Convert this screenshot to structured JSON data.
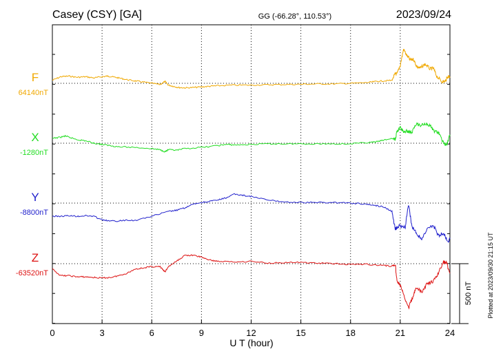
{
  "header": {
    "station": "Casey (CSY)  [GA]",
    "coords": "GG (-66.28°, 110.53°)",
    "date": "2023/09/24"
  },
  "footer": {
    "plotted_note": "Plotted at 2023/09/30 21:15 UT",
    "scale_label": "500 nT"
  },
  "chart_data": {
    "type": "line",
    "xlabel": "U T (hour)",
    "xlim": [
      0,
      24
    ],
    "xticks": [
      0,
      3,
      6,
      9,
      12,
      15,
      18,
      21,
      24
    ],
    "scale_bar_nT": 500,
    "series": [
      {
        "name": "F",
        "baseline_label": "64140nT",
        "color": "#f0a800",
        "x": [
          0,
          0.5,
          1.0,
          1.5,
          2.0,
          2.5,
          3.0,
          3.3,
          3.6,
          4.0,
          4.5,
          5.0,
          5.5,
          6.0,
          6.5,
          6.8,
          7.0,
          7.3,
          7.6,
          8.0,
          8.5,
          9.0,
          9.5,
          10.0,
          11.0,
          12.0,
          13.0,
          14.0,
          15.0,
          16.0,
          17.0,
          18.0,
          19.0,
          19.5,
          20.0,
          20.5,
          20.7,
          20.8,
          21.0,
          21.2,
          21.4,
          21.6,
          21.8,
          22.0,
          22.2,
          22.5,
          22.8,
          23.0,
          23.2,
          23.5,
          23.7,
          23.9,
          24.0
        ],
        "y": [
          25,
          55,
          60,
          50,
          55,
          45,
          55,
          60,
          55,
          45,
          30,
          20,
          10,
          0,
          -10,
          15,
          -15,
          -25,
          -35,
          -38,
          -35,
          -30,
          -25,
          -20,
          -15,
          -15,
          -12,
          -10,
          -8,
          -5,
          -5,
          0,
          5,
          15,
          20,
          25,
          80,
          75,
          150,
          285,
          230,
          195,
          200,
          140,
          125,
          160,
          120,
          125,
          60,
          15,
          15,
          60,
          55
        ]
      },
      {
        "name": "X",
        "baseline_label": "-1280nT",
        "color": "#22dd22",
        "x": [
          0,
          0.5,
          0.8,
          1.0,
          1.5,
          2.0,
          2.5,
          3.0,
          3.5,
          4.0,
          5.0,
          6.0,
          6.5,
          6.8,
          7.0,
          7.5,
          8.0,
          9.0,
          10.0,
          10.5,
          11.0,
          12.0,
          13.0,
          14.0,
          15.0,
          16.0,
          17.0,
          18.0,
          19.0,
          19.5,
          20.0,
          20.5,
          20.7,
          20.8,
          21.0,
          21.2,
          21.4,
          21.7,
          22.0,
          22.2,
          22.5,
          22.8,
          23.0,
          23.3,
          23.6,
          23.8,
          24.0
        ],
        "y": [
          40,
          50,
          60,
          50,
          30,
          20,
          0,
          -10,
          -20,
          -30,
          -35,
          -45,
          -55,
          -70,
          -55,
          -60,
          -45,
          -35,
          -20,
          -10,
          -15,
          -10,
          -5,
          -5,
          -5,
          -5,
          -5,
          -5,
          5,
          10,
          25,
          40,
          30,
          100,
          130,
          95,
          100,
          90,
          170,
          145,
          165,
          150,
          105,
          90,
          5,
          -15,
          70
        ]
      },
      {
        "name": "Y",
        "baseline_label": "-8800nT",
        "color": "#2020cc",
        "x": [
          0,
          0.5,
          1.0,
          1.5,
          2.0,
          2.5,
          3.0,
          3.5,
          4.0,
          4.5,
          5.0,
          6.0,
          7.0,
          7.5,
          8.0,
          8.5,
          9.0,
          9.5,
          10.0,
          10.5,
          11.0,
          11.5,
          12.0,
          13.0,
          14.0,
          15.0,
          16.0,
          17.0,
          18.0,
          19.0,
          19.5,
          20.0,
          20.5,
          20.7,
          20.8,
          21.0,
          21.3,
          21.5,
          21.7,
          22.0,
          22.3,
          22.7,
          23.0,
          23.3,
          23.6,
          23.9,
          24.0
        ],
        "y": [
          -110,
          -110,
          -105,
          -110,
          -105,
          -110,
          -140,
          -150,
          -150,
          -140,
          -145,
          -110,
          -70,
          -60,
          -40,
          -10,
          5,
          15,
          25,
          45,
          75,
          65,
          55,
          25,
          10,
          5,
          5,
          5,
          0,
          -10,
          -20,
          -30,
          -70,
          -220,
          -200,
          -190,
          -200,
          -10,
          -195,
          -255,
          -300,
          -205,
          -185,
          -270,
          -250,
          -320,
          -290
        ]
      },
      {
        "name": "Z",
        "baseline_label": "-63520nT",
        "color": "#dd1111",
        "x": [
          0,
          0.5,
          1.0,
          1.5,
          2.0,
          2.5,
          3.0,
          3.5,
          4.0,
          4.5,
          5.0,
          5.5,
          6.0,
          6.5,
          6.8,
          7.0,
          7.5,
          8.0,
          8.5,
          9.0,
          9.5,
          10.0,
          11.0,
          12.0,
          13.0,
          14.0,
          15.0,
          16.0,
          17.0,
          18.0,
          19.0,
          20.0,
          20.5,
          20.7,
          20.8,
          21.0,
          21.2,
          21.5,
          21.8,
          22.0,
          22.3,
          22.6,
          23.0,
          23.3,
          23.6,
          23.8,
          24.0
        ],
        "y": [
          -45,
          -100,
          -100,
          -110,
          -110,
          -115,
          -120,
          -115,
          -100,
          -80,
          -45,
          -35,
          -25,
          -25,
          -70,
          -25,
          20,
          70,
          70,
          55,
          30,
          20,
          15,
          20,
          5,
          10,
          10,
          5,
          0,
          -5,
          -5,
          -15,
          -20,
          -5,
          -145,
          -180,
          -260,
          -370,
          -260,
          -200,
          -240,
          -170,
          -150,
          -80,
          15,
          5,
          -80
        ]
      }
    ]
  }
}
